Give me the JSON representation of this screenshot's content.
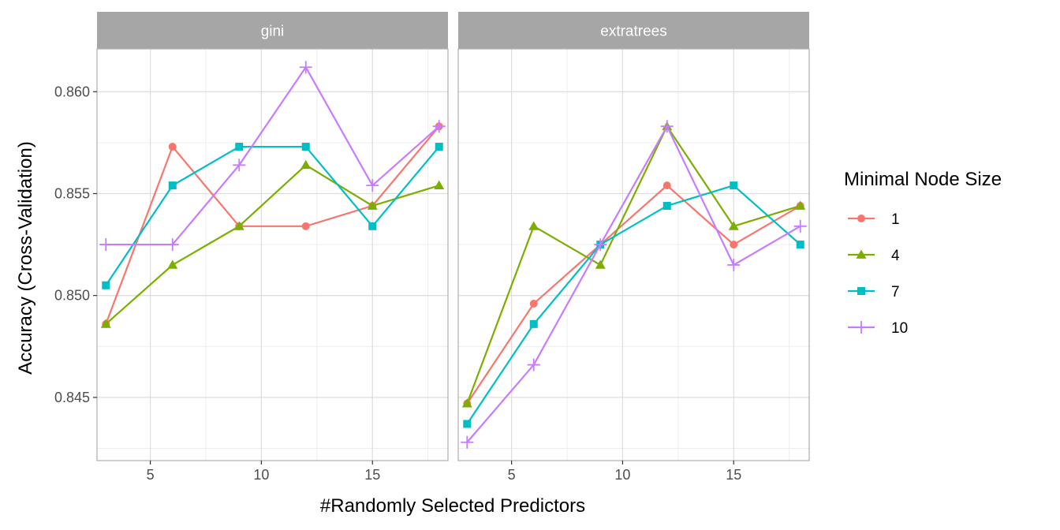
{
  "chart_data": {
    "type": "line",
    "ylabel": "Accuracy (Cross-Validation)",
    "xlabel": "#Randomly Selected Predictors",
    "xlim": [
      2.6,
      18.4
    ],
    "ylim": [
      0.8419,
      0.8621
    ],
    "x_ticks": [
      5,
      10,
      15
    ],
    "y_ticks": [
      0.845,
      0.85,
      0.855,
      0.86
    ],
    "y_tick_labels": [
      "0.845",
      "0.850",
      "0.855",
      "0.860"
    ],
    "grid": true,
    "legend": {
      "title": "Minimal Node Size",
      "placement": "right",
      "entries": [
        "1",
        "4",
        "7",
        "10"
      ]
    },
    "series_styles": [
      {
        "name": "1",
        "color": "#F8766D",
        "marker": "circle"
      },
      {
        "name": "4",
        "color": "#7CAE00",
        "marker": "triangle"
      },
      {
        "name": "7",
        "color": "#00BFC4",
        "marker": "square"
      },
      {
        "name": "10",
        "color": "#C77CFF",
        "marker": "plus"
      }
    ],
    "x": [
      3,
      6,
      9,
      12,
      15,
      18
    ],
    "panels": [
      {
        "title": "gini",
        "series": [
          {
            "name": "1",
            "values": [
              0.8486,
              0.8573,
              0.8534,
              0.8534,
              0.8544,
              0.8583
            ]
          },
          {
            "name": "4",
            "values": [
              0.8486,
              0.8515,
              0.8534,
              0.8564,
              0.8544,
              0.8554
            ]
          },
          {
            "name": "7",
            "values": [
              0.8505,
              0.8554,
              0.8573,
              0.8573,
              0.8534,
              0.8573
            ]
          },
          {
            "name": "10",
            "values": [
              0.8525,
              0.8525,
              0.8564,
              0.8612,
              0.8554,
              0.8583
            ]
          }
        ]
      },
      {
        "title": "extratrees",
        "series": [
          {
            "name": "1",
            "values": [
              0.8447,
              0.8496,
              0.8525,
              0.8554,
              0.8525,
              0.8544
            ]
          },
          {
            "name": "4",
            "values": [
              0.8447,
              0.8534,
              0.8515,
              0.8583,
              0.8534,
              0.8544
            ]
          },
          {
            "name": "7",
            "values": [
              0.8437,
              0.8486,
              0.8525,
              0.8544,
              0.8554,
              0.8525
            ]
          },
          {
            "name": "10",
            "values": [
              0.8428,
              0.8466,
              0.8525,
              0.8583,
              0.8515,
              0.8534
            ]
          }
        ]
      }
    ]
  }
}
